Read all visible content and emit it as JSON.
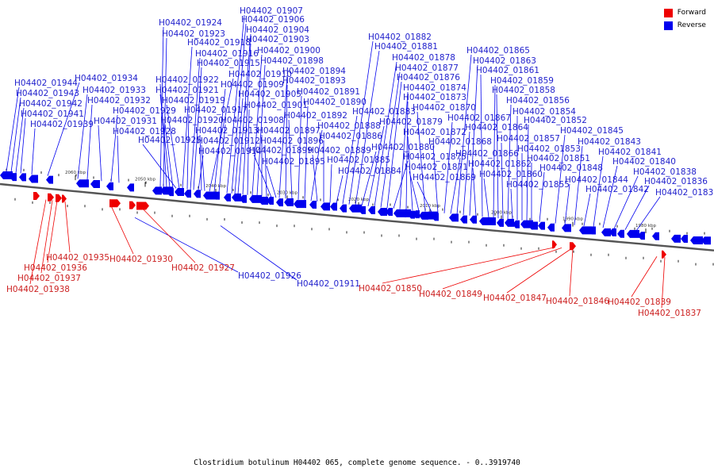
{
  "legend": {
    "forward_label": "Forward",
    "reverse_label": "Reverse",
    "forward_color": "#ee0000",
    "reverse_color": "#0000ee"
  },
  "caption": "Clostridium botulinum H04402 065, complete genome sequence. - 0..3919740",
  "ticks": [
    "2060 kbp",
    "2050 kbp",
    "2040 kbp",
    "2030 kbp",
    "2020 kbp",
    "2010 kbp",
    "2000 kbp",
    "1990 kbp",
    "1980 kbp"
  ],
  "reverse_genes": [
    "H04402_01944",
    "H04402_01943",
    "H04402_01942",
    "H04402_01941",
    "H04402_01939",
    "H04402_01934",
    "H04402_01933",
    "H04402_01932",
    "H04402_01931",
    "H04402_01929",
    "H04402_01928",
    "H04402_01924",
    "H04402_01923",
    "H04402_01922",
    "H04402_01921",
    "H04402_01920",
    "H04402_01925",
    "H04402_01919",
    "H04402_01918",
    "H04402_01917",
    "H04402_01916",
    "H04402_01915",
    "H04402_01914",
    "H04402_01913",
    "H04402_01912",
    "H04402_01910",
    "H04402_01909",
    "H04402_01908",
    "H04402_01907",
    "H04402_01906",
    "H04402_01905",
    "H04402_01904",
    "H04402_01903",
    "H04402_01901",
    "H04402_01900",
    "H04402_01898",
    "H04402_01897",
    "H04402_01896",
    "H04402_01899",
    "H04402_01895",
    "H04402_01894",
    "H04402_01893",
    "H04402_01892",
    "H04402_01891",
    "H04402_01890",
    "H04402_01888",
    "H04402_01889",
    "H04402_01886",
    "H04402_01885",
    "H04402_01884",
    "H04402_01883",
    "H04402_01882",
    "H04402_01881",
    "H04402_01880",
    "H04402_01879",
    "H04402_01878",
    "H04402_01877",
    "H04402_01876",
    "H04402_01875",
    "H04402_01874",
    "H04402_01873",
    "H04402_01872",
    "H04402_01871",
    "H04402_01870",
    "H04402_01869",
    "H04402_01868",
    "H04402_01867",
    "H04402_01866",
    "H04402_01865",
    "H04402_01864",
    "H04402_01863",
    "H04402_01862",
    "H04402_01861",
    "H04402_01860",
    "H04402_01859",
    "H04402_01858",
    "H04402_01857",
    "H04402_01856",
    "H04402_01855",
    "H04402_01854",
    "H04402_01853",
    "H04402_01852",
    "H04402_01851",
    "H04402_01848",
    "H04402_01845",
    "H04402_01844",
    "H04402_01843",
    "H04402_01842",
    "H04402_01841",
    "H04402_01840",
    "H04402_01838",
    "H04402_01836",
    "H04402_01835",
    "H04402_01926",
    "H04402_01911"
  ],
  "forward_genes": [
    "H04402_01935",
    "H04402_01936",
    "H04402_01937",
    "H04402_01938",
    "H04402_01930",
    "H04402_01927",
    "H04402_01850",
    "H04402_01849",
    "H04402_01847",
    "H04402_01846",
    "H04402_01839",
    "H04402_01837"
  ]
}
